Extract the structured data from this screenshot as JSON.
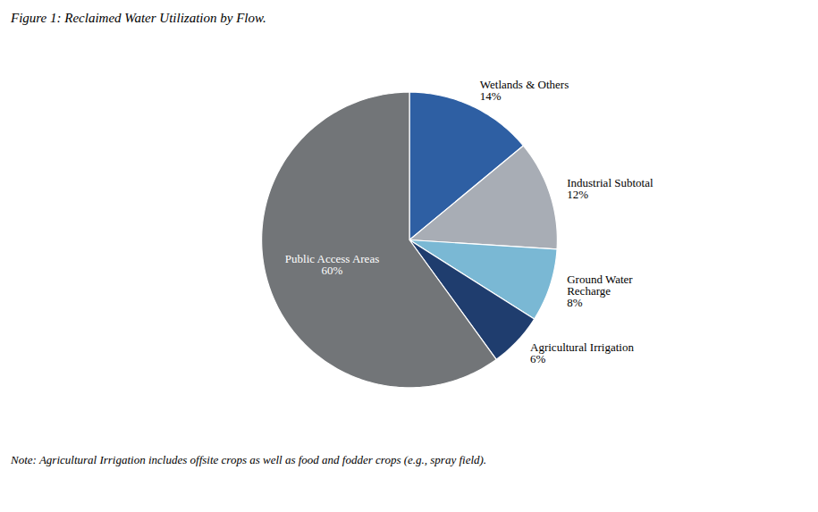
{
  "chart_data": {
    "type": "pie",
    "title": "Figure 1: Reclaimed Water Utilization by Flow.",
    "annotations": [
      "Note: Agricultural Irrigation includes offsite crops as well as food and fodder crops (e.g., spray field)."
    ],
    "categories": [
      "Wetlands & Others",
      "Industrial Subtotal",
      "Ground Water\nRecharge",
      "Agricultural Irrigation",
      "Public Access Areas"
    ],
    "values": [
      14,
      12,
      8,
      6,
      60
    ],
    "value_labels": [
      "14%",
      "12%",
      "8%",
      "6%",
      "60%"
    ],
    "data_labels": true,
    "colors": [
      "#2e5fa3",
      "#a8adb5",
      "#7ab8d4",
      "#1f3d6e",
      "#727578"
    ]
  }
}
